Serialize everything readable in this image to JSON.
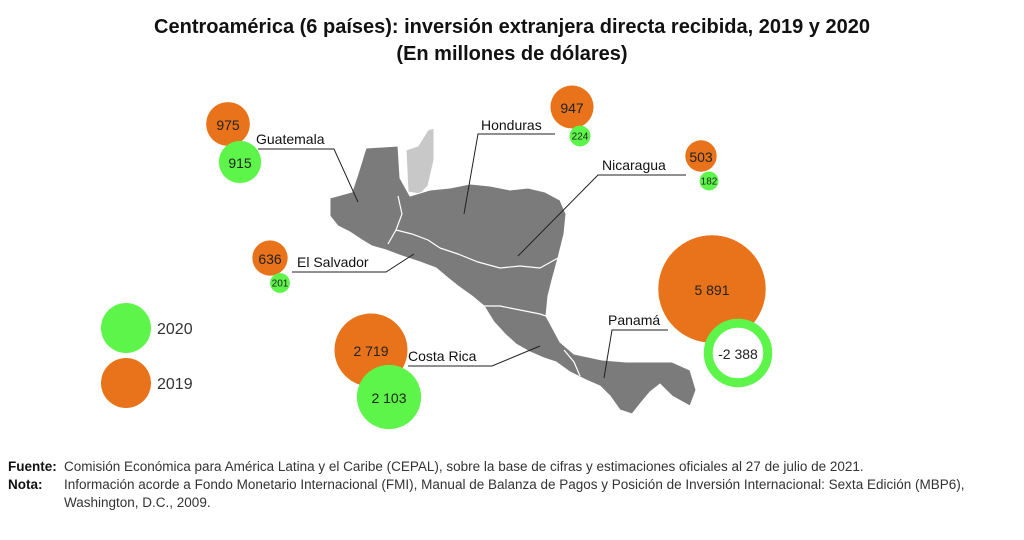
{
  "chart_data": {
    "type": "bubble-map",
    "title": "Centroamérica (6 países): inversión extranjera directa recibida, 2019 y 2020",
    "subtitle": "(En millones de dólares)",
    "series": [
      {
        "name": "2019",
        "color": "#E8731A"
      },
      {
        "name": "2020",
        "color": "#5EF54A"
      }
    ],
    "countries": [
      {
        "name": "Guatemala",
        "y2019": 975,
        "y2020": 915,
        "label2019": "975",
        "label2020": "915"
      },
      {
        "name": "Honduras",
        "y2019": 947,
        "y2020": 224,
        "label2019": "947",
        "label2020": "224"
      },
      {
        "name": "Nicaragua",
        "y2019": 503,
        "y2020": 182,
        "label2019": "503",
        "label2020": "182"
      },
      {
        "name": "El Salvador",
        "y2019": 636,
        "y2020": 201,
        "label2019": "636",
        "label2020": "201"
      },
      {
        "name": "Costa Rica",
        "y2019": 2719,
        "y2020": 2103,
        "label2019": "2 719",
        "label2020": "2 103"
      },
      {
        "name": "Panamá",
        "y2019": 5891,
        "y2020": -2388,
        "label2019": "5 891",
        "label2020": "-2 388"
      }
    ],
    "legend": [
      "2020",
      "2019"
    ],
    "note": "Negative 2020 value shown as hollow green ring"
  },
  "footer": {
    "source_key": "Fuente:",
    "source_text": "Comisión Económica para América Latina y el Caribe (CEPAL), sobre la base de cifras y estimaciones oficiales al 27 de julio de 2021.",
    "note_key": "Nota:",
    "note_text": "Información acorde a Fondo Monetario Internacional (FMI), Manual de Balanza de Pagos y Posición de Inversión Internacional: Sexta Edición (MBP6), Washington, D.C., 2009."
  }
}
